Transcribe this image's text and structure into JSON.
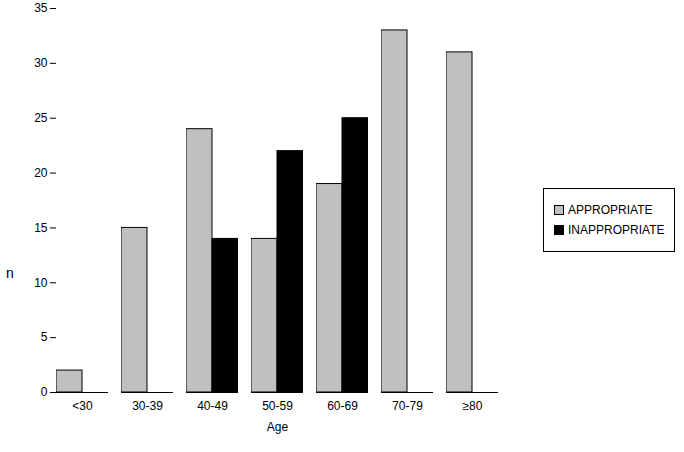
{
  "chart_data": {
    "type": "bar",
    "x_label": "Age",
    "y_label": "n",
    "categories": [
      "<30",
      "30-39",
      "40-49",
      "50-59",
      "60-69",
      "70-79",
      "≥80"
    ],
    "series": [
      {
        "name": "APPROPRIATE",
        "color": "#c0c0c0",
        "values": [
          2,
          15,
          24,
          14,
          19,
          33,
          31
        ]
      },
      {
        "name": "INAPPROPRIATE",
        "color": "#000000",
        "values": [
          null,
          null,
          14,
          22,
          25,
          null,
          null
        ]
      }
    ],
    "ylim": [
      0,
      35
    ],
    "yticks": [
      0,
      5,
      10,
      15,
      20,
      25,
      30,
      35
    ],
    "legend": "right",
    "grid": false
  }
}
